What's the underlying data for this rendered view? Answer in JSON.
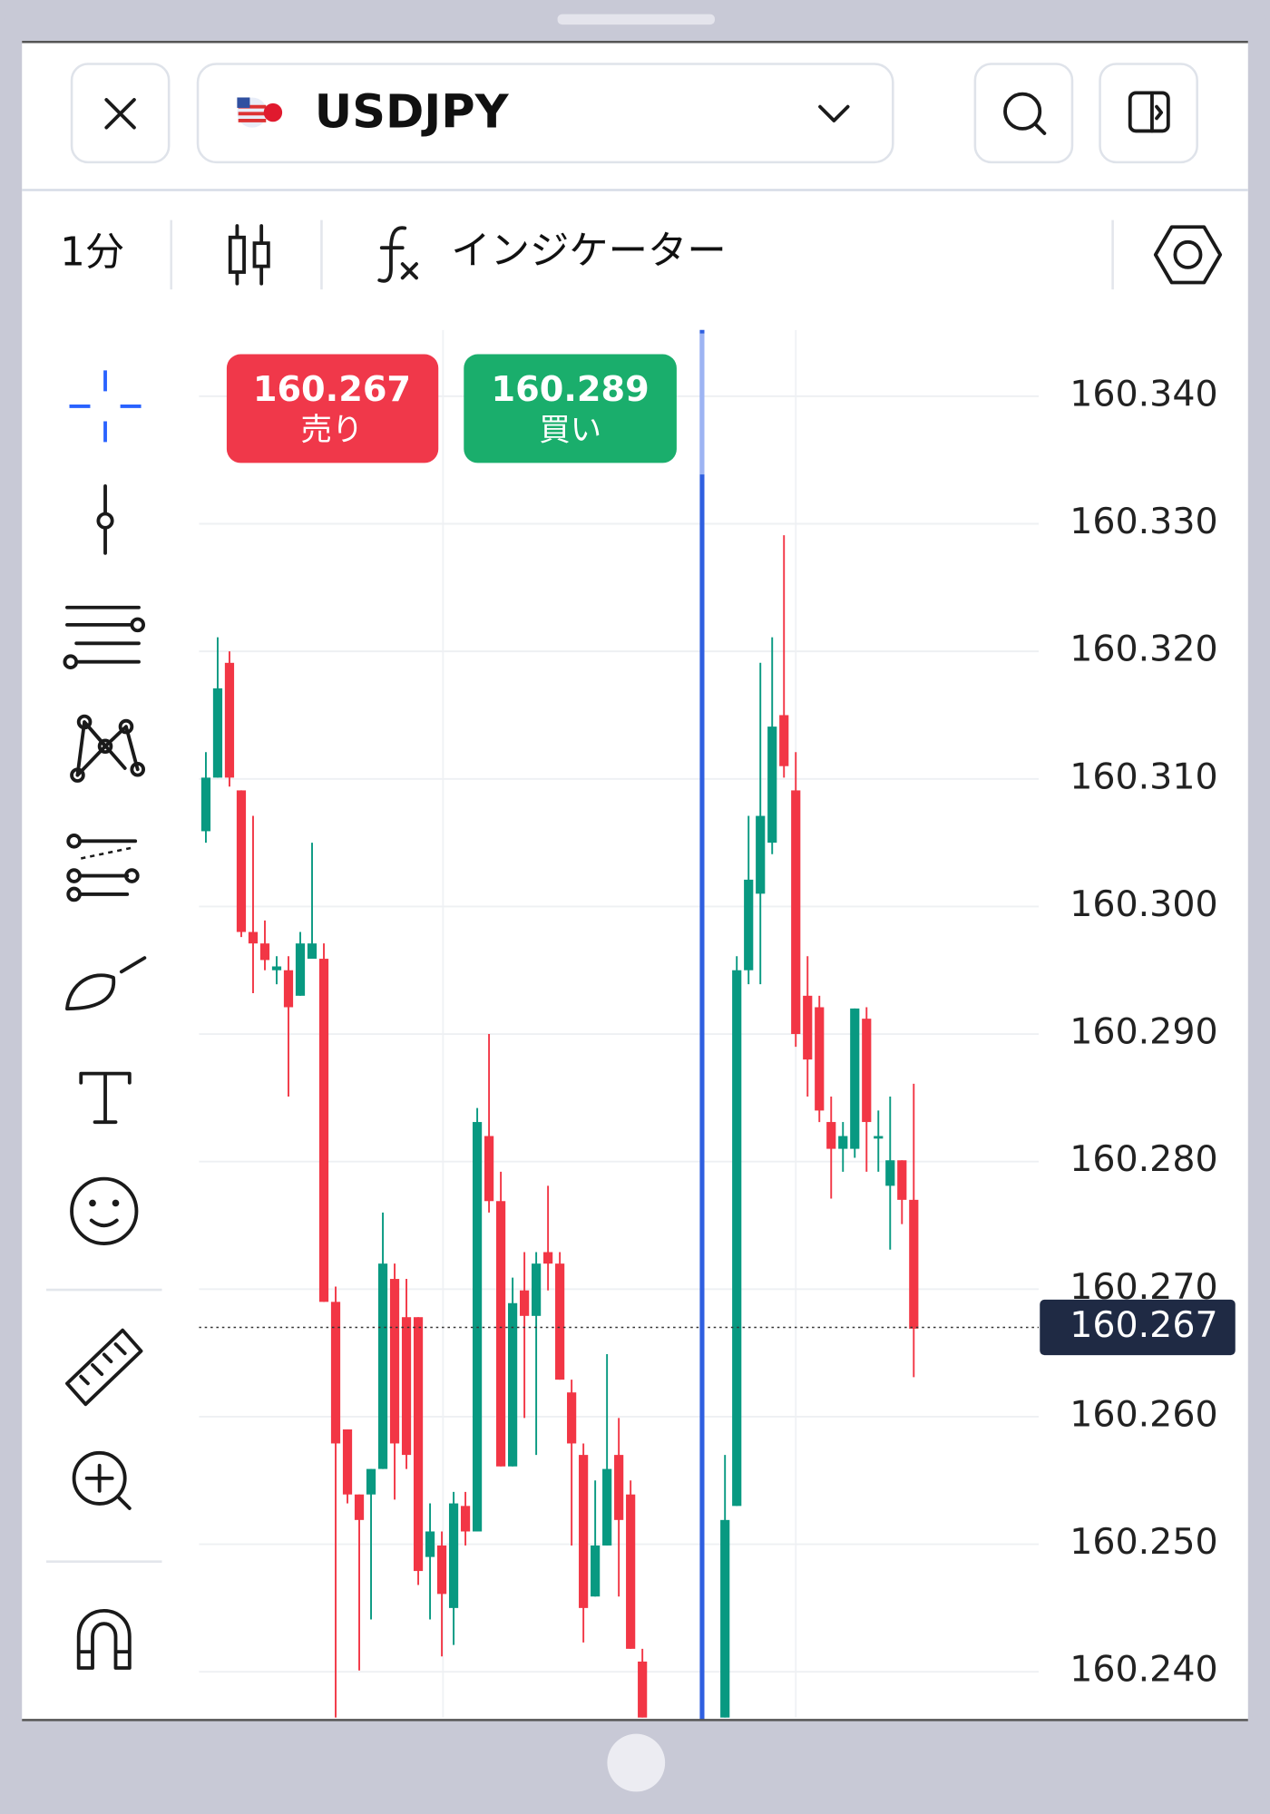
{
  "header": {
    "symbol": "USDJPY"
  },
  "toolbar": {
    "interval": "1分",
    "indicators": "インジケーター"
  },
  "order_buttons": {
    "sell": {
      "price": "160.267",
      "label": "売り"
    },
    "buy": {
      "price": "160.289",
      "label": "買い"
    }
  },
  "chart_data": {
    "type": "candlestick",
    "up_color": "#089981",
    "down_color": "#f23645",
    "grid": true,
    "ylim": [
      160.2364,
      160.3452
    ],
    "yticks": [
      {
        "value": 160.24,
        "label": "160.240"
      },
      {
        "value": 160.25,
        "label": "160.250"
      },
      {
        "value": 160.26,
        "label": "160.260"
      },
      {
        "value": 160.27,
        "label": "160.270"
      },
      {
        "value": 160.28,
        "label": "160.280"
      },
      {
        "value": 160.29,
        "label": "160.290"
      },
      {
        "value": 160.3,
        "label": "160.300"
      },
      {
        "value": 160.31,
        "label": "160.310"
      },
      {
        "value": 160.32,
        "label": "160.320"
      },
      {
        "value": 160.33,
        "label": "160.330"
      },
      {
        "value": 160.34,
        "label": "160.340"
      }
    ],
    "last_price": 160.267,
    "open": [
      160.3059,
      160.3101,
      160.3191,
      160.3091,
      160.298,
      160.2971,
      160.295,
      160.295,
      160.293,
      160.2959,
      160.2959,
      160.269,
      160.259,
      160.2539,
      160.2539,
      160.2559,
      160.2708,
      160.2678,
      160.2678,
      160.249,
      160.2499,
      160.245,
      160.253,
      160.251,
      160.282,
      160.2769,
      160.2561,
      160.2699,
      160.2679,
      160.2729,
      160.272,
      160.2619,
      160.257,
      160.2459,
      160.2499,
      160.257,
      160.2539,
      160.2408,
      null,
      null,
      null,
      null,
      null,
      null,
      160.2364,
      160.253,
      160.295,
      160.301,
      160.305,
      160.315,
      160.3091,
      160.293,
      160.2921,
      160.2831,
      160.281,
      160.281,
      160.2912,
      160.2818,
      160.2781,
      160.2801,
      160.277
    ],
    "high": [
      160.3121,
      160.3211,
      160.32,
      160.3091,
      160.3071,
      160.2989,
      160.2961,
      160.2961,
      160.298,
      160.305,
      160.2971,
      160.2702,
      160.259,
      160.2539,
      160.2559,
      160.276,
      160.272,
      160.2708,
      160.2678,
      160.2532,
      160.251,
      160.2541,
      160.2541,
      160.2842,
      160.29,
      160.2792,
      160.2709,
      160.2729,
      160.2729,
      160.2781,
      160.2729,
      160.2629,
      160.2579,
      160.255,
      160.2649,
      160.2599,
      160.255,
      160.2418,
      null,
      null,
      null,
      null,
      null,
      null,
      160.257,
      160.2961,
      160.3071,
      160.3191,
      160.3211,
      160.3291,
      160.3121,
      160.2961,
      160.293,
      160.2851,
      160.2831,
      160.292,
      160.2921,
      160.284,
      160.2851,
      160.2801,
      160.2861
    ],
    "low": [
      160.305,
      160.3101,
      160.3094,
      160.2976,
      160.2932,
      160.295,
      160.2939,
      160.2851,
      160.293,
      160.2959,
      160.269,
      160.2364,
      160.2532,
      160.2401,
      160.2441,
      160.2559,
      160.2535,
      160.2559,
      160.2468,
      160.2441,
      160.2412,
      160.2421,
      160.2499,
      160.251,
      160.276,
      160.2561,
      160.2561,
      160.2599,
      160.257,
      160.2699,
      160.2629,
      160.2499,
      160.2423,
      160.2459,
      160.2499,
      160.2459,
      160.2418,
      160.2364,
      null,
      null,
      null,
      null,
      null,
      null,
      160.2364,
      160.253,
      160.2939,
      160.2939,
      160.3041,
      160.3101,
      160.289,
      160.2851,
      160.2831,
      160.2771,
      160.2792,
      160.2803,
      160.2792,
      160.2792,
      160.2731,
      160.2751,
      160.2631
    ],
    "close": [
      160.3101,
      160.3171,
      160.3101,
      160.298,
      160.2971,
      160.2958,
      160.2953,
      160.2921,
      160.2971,
      160.2971,
      160.269,
      160.2579,
      160.2539,
      160.2519,
      160.2559,
      160.272,
      160.2579,
      160.257,
      160.2479,
      160.251,
      160.2461,
      160.2532,
      160.251,
      160.2831,
      160.2769,
      160.2561,
      160.2689,
      160.2679,
      160.272,
      160.272,
      160.2629,
      160.2579,
      160.245,
      160.2499,
      160.2559,
      160.2519,
      160.2418,
      160.2364,
      null,
      null,
      null,
      null,
      null,
      null,
      160.2519,
      160.295,
      160.3021,
      160.3071,
      160.3141,
      160.311,
      160.29,
      160.288,
      160.284,
      160.281,
      160.282,
      160.292,
      160.2831,
      160.282,
      160.2801,
      160.277,
      160.2669
    ]
  }
}
